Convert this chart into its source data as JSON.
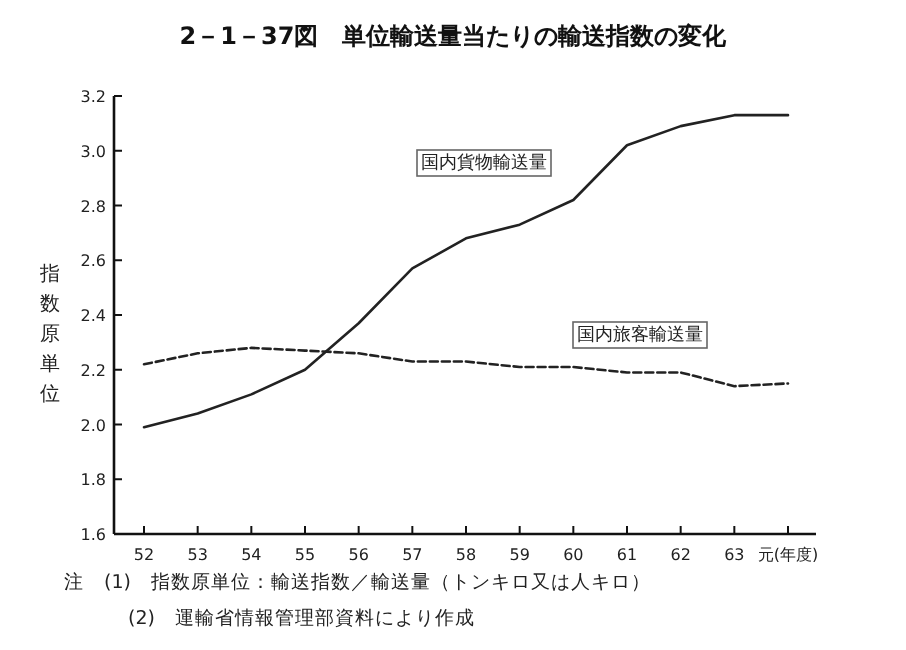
{
  "chart_data": {
    "type": "line",
    "title": "2－1－37図　単位輸送量当たりの輸送指数の変化",
    "ylabel": "指数原単位",
    "categories": [
      "52",
      "53",
      "54",
      "55",
      "56",
      "57",
      "58",
      "59",
      "60",
      "61",
      "62",
      "63",
      "元(年度)"
    ],
    "ylim": [
      1.6,
      3.2
    ],
    "yticks": [
      1.6,
      1.8,
      {
        "value": 2,
        "label": "2.0"
      },
      2.2,
      2.4,
      2.6,
      2.8,
      {
        "value": 3,
        "label": "3.0"
      },
      3.2
    ],
    "grid": false,
    "marker": "none",
    "series": [
      {
        "name": "国内貨物輸送量",
        "color": "#222222",
        "line_style": "solid",
        "values": [
          1.99,
          2.04,
          2.11,
          2.2,
          2.37,
          2.57,
          2.68,
          2.73,
          2.82,
          3.02,
          3.09,
          3.13,
          3.13
        ]
      },
      {
        "name": "国内旅客輸送量",
        "color": "#222222",
        "line_style": "dashed",
        "values": [
          2.22,
          2.26,
          2.28,
          2.27,
          2.26,
          2.23,
          2.23,
          2.21,
          2.21,
          2.19,
          2.19,
          2.14,
          2.15
        ]
      }
    ],
    "annotations": [
      "注　(1)　指数原単位：輸送指数／輸送量（トンキロ又は人キロ）",
      "(2)　運輸省情報管理部資料により作成"
    ]
  }
}
